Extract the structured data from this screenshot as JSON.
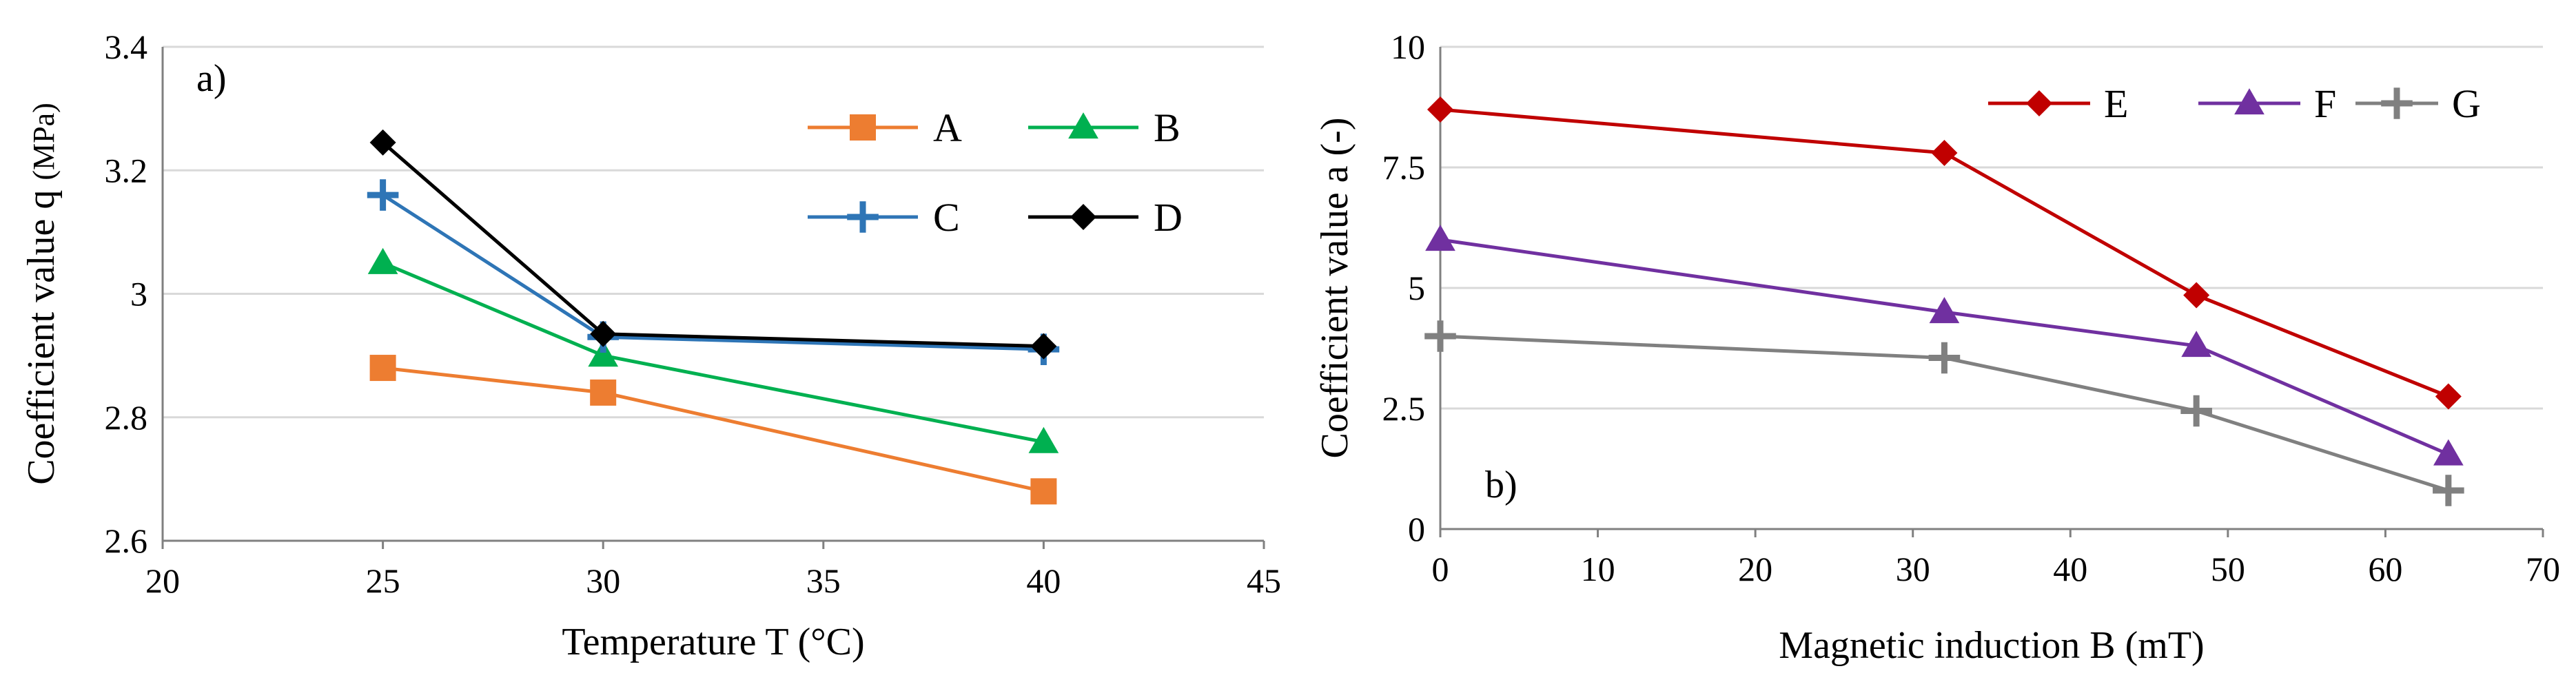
{
  "chart_data": [
    {
      "type": "line",
      "panel_label": "a)",
      "xlabel": "Temperature T (°C)",
      "ylabel_main": "Coefficient value q ",
      "ylabel_unit": "(MPa)",
      "xlim": [
        20,
        45
      ],
      "ylim": [
        2.6,
        3.4
      ],
      "xticks": [
        20,
        25,
        30,
        35,
        40,
        45
      ],
      "yticks": [
        2.6,
        2.8,
        3.0,
        3.2,
        3.4
      ],
      "ytick_labels": [
        "2.6",
        "2.8",
        "3",
        "3.2",
        "3.4"
      ],
      "grid": "horizontal",
      "legend_position": "top-right",
      "series": [
        {
          "name": "A",
          "marker": "square",
          "color": "#ED7D31",
          "x": [
            25,
            30,
            40
          ],
          "y": [
            2.88,
            2.84,
            2.68
          ]
        },
        {
          "name": "B",
          "marker": "triangle",
          "color": "#00B050",
          "x": [
            25,
            30,
            40
          ],
          "y": [
            3.05,
            2.9,
            2.76
          ]
        },
        {
          "name": "C",
          "marker": "plus",
          "color": "#2E75B6",
          "x": [
            25,
            30,
            40
          ],
          "y": [
            3.16,
            2.93,
            2.91
          ]
        },
        {
          "name": "D",
          "marker": "diamond",
          "color": "#000000",
          "x": [
            25,
            30,
            40
          ],
          "y": [
            3.245,
            2.935,
            2.915
          ]
        }
      ]
    },
    {
      "type": "line",
      "panel_label": "b)",
      "xlabel": "Magnetic induction B (mT)",
      "ylabel_main": "Coefficient value a (-)",
      "ylabel_unit": "",
      "xlim": [
        0,
        70
      ],
      "ylim": [
        0,
        10
      ],
      "xticks": [
        0,
        10,
        20,
        30,
        40,
        50,
        60,
        70
      ],
      "yticks": [
        0,
        2.5,
        5,
        7.5,
        10
      ],
      "ytick_labels": [
        "0",
        "2.5",
        "5",
        "7.5",
        "10"
      ],
      "grid": "horizontal",
      "legend_position": "top-right",
      "series": [
        {
          "name": "E",
          "marker": "diamond",
          "color": "#C00000",
          "x": [
            0,
            32,
            48,
            64
          ],
          "y": [
            8.7,
            7.8,
            4.85,
            2.75
          ]
        },
        {
          "name": "F",
          "marker": "triangle",
          "color": "#7030A0",
          "x": [
            0,
            32,
            48,
            64
          ],
          "y": [
            6.0,
            4.5,
            3.8,
            1.55
          ]
        },
        {
          "name": "G",
          "marker": "plus",
          "color": "#808080",
          "x": [
            0,
            32,
            48,
            64
          ],
          "y": [
            4.0,
            3.55,
            2.45,
            0.8
          ]
        }
      ]
    }
  ]
}
